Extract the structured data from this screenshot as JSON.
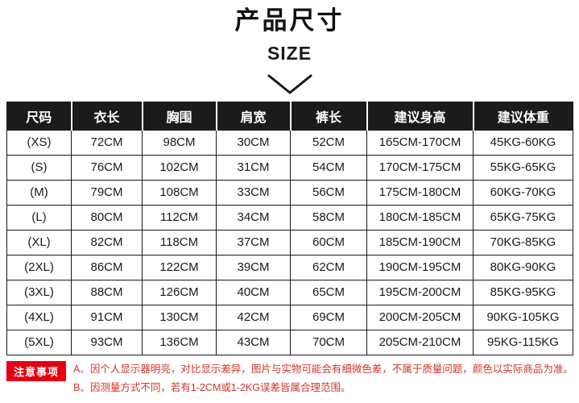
{
  "page": {
    "title": "产品尺寸",
    "subtitle": "SIZE"
  },
  "chart_data": {
    "type": "table",
    "title": "产品尺寸",
    "subtitle": "SIZE",
    "columns": [
      "尺码",
      "衣长",
      "胸围",
      "肩宽",
      "裤长",
      "建议身高",
      "建议体重"
    ],
    "rows": [
      [
        "(XS)",
        "72CM",
        "98CM",
        "30CM",
        "52CM",
        "165CM-170CM",
        "45KG-60KG"
      ],
      [
        "(S)",
        "76CM",
        "102CM",
        "31CM",
        "54CM",
        "170CM-175CM",
        "55KG-65KG"
      ],
      [
        "(M)",
        "79CM",
        "108CM",
        "33CM",
        "56CM",
        "175CM-180CM",
        "60KG-70KG"
      ],
      [
        "(L)",
        "80CM",
        "112CM",
        "34CM",
        "58CM",
        "180CM-185CM",
        "65KG-75KG"
      ],
      [
        "(XL)",
        "82CM",
        "118CM",
        "37CM",
        "60CM",
        "185CM-190CM",
        "70KG-85KG"
      ],
      [
        "(2XL)",
        "86CM",
        "122CM",
        "39CM",
        "62CM",
        "190CM-195CM",
        "80KG-90KG"
      ],
      [
        "(3XL)",
        "88CM",
        "126CM",
        "40CM",
        "65CM",
        "195CM-200CM",
        "85KG-95KG"
      ],
      [
        "(4XL)",
        "91CM",
        "130CM",
        "42CM",
        "69CM",
        "200CM-205CM",
        "90KG-105KG"
      ],
      [
        "(5XL)",
        "93CM",
        "136CM",
        "43CM",
        "70CM",
        "205CM-210CM",
        "95KG-115KG"
      ]
    ]
  },
  "notes": {
    "badge": "注意事项",
    "line_a": "A、因个人显示器明亮，对比显示差异，图片与实物可能会有细微色差，不属于质量问题，颜色以实际商品为准。",
    "line_b": "B、因测量方式不同，若有1-2CM或1-2KG误差皆属合理范围。"
  },
  "colors": {
    "header_bg": "#1b1b1b",
    "header_text": "#ffffff",
    "body_text": "#1a1a1a",
    "badge_bg": "#e60012",
    "note_text": "#d0352b",
    "border": "#1a1a1a"
  }
}
